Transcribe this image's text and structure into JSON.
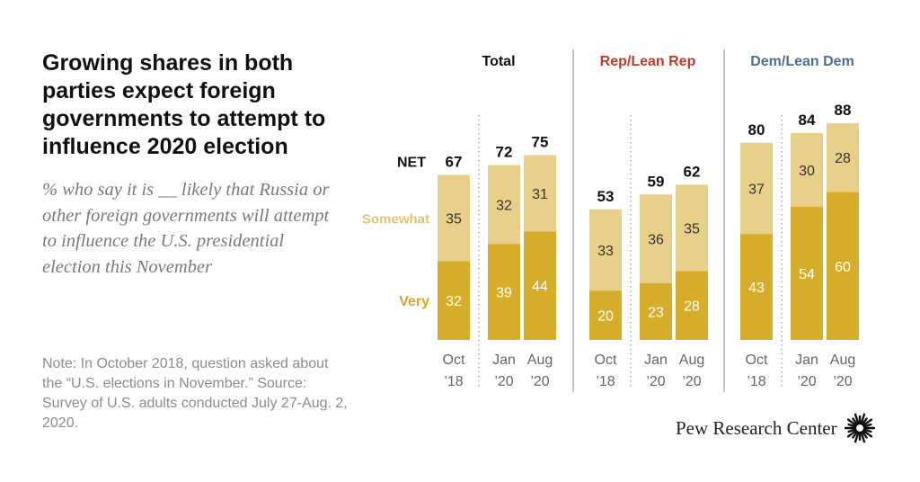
{
  "header": {
    "title": "Growing shares in both parties expect foreign governments to attempt to influence 2020 election",
    "subtitle": "% who say it is __ likely that Russia or other foreign governments will attempt to influence the U.S. presidential election this November"
  },
  "footer": {
    "note": "Note: In October 2018, question asked about the “U.S. elections in November.” Source: Survey of U.S. adults conducted July 27-Aug. 2, 2020.",
    "logo_text": "Pew Research Center",
    "logo_icon": "pew-sunburst-icon"
  },
  "labels": {
    "net": "NET",
    "somewhat": "Somewhat",
    "very": "Very"
  },
  "colors": {
    "very": "#d6ac2b",
    "somewhat": "#e9d08a",
    "rep_header": "#c0392b",
    "dem_header": "#4d6f8f",
    "total_header": "#111111",
    "somewhat_label": "#e2c36f",
    "very_label": "#d6a82a"
  },
  "chart_data": {
    "type": "bar",
    "stacked": true,
    "ylim": [
      0,
      100
    ],
    "series": [
      {
        "name": "Very",
        "key": "very"
      },
      {
        "name": "Somewhat",
        "key": "somewhat"
      }
    ],
    "groups": [
      {
        "name": "Total",
        "bars": [
          {
            "label": [
              "Oct",
              "’18"
            ],
            "very": 32,
            "somewhat": 35,
            "net": 67
          },
          {
            "label": [
              "Jan",
              "’20"
            ],
            "very": 39,
            "somewhat": 32,
            "net": 72
          },
          {
            "label": [
              "Aug",
              "’20"
            ],
            "very": 44,
            "somewhat": 31,
            "net": 75
          }
        ]
      },
      {
        "name": "Rep/Lean Rep",
        "bars": [
          {
            "label": [
              "Oct",
              "’18"
            ],
            "very": 20,
            "somewhat": 33,
            "net": 53
          },
          {
            "label": [
              "Jan",
              "’20"
            ],
            "very": 23,
            "somewhat": 36,
            "net": 59
          },
          {
            "label": [
              "Aug",
              "’20"
            ],
            "very": 28,
            "somewhat": 35,
            "net": 62
          }
        ]
      },
      {
        "name": "Dem/Lean Dem",
        "bars": [
          {
            "label": [
              "Oct",
              "’18"
            ],
            "very": 43,
            "somewhat": 37,
            "net": 80
          },
          {
            "label": [
              "Jan",
              "’20"
            ],
            "very": 54,
            "somewhat": 30,
            "net": 84
          },
          {
            "label": [
              "Aug",
              "’20"
            ],
            "very": 60,
            "somewhat": 28,
            "net": 88
          }
        ]
      }
    ]
  }
}
